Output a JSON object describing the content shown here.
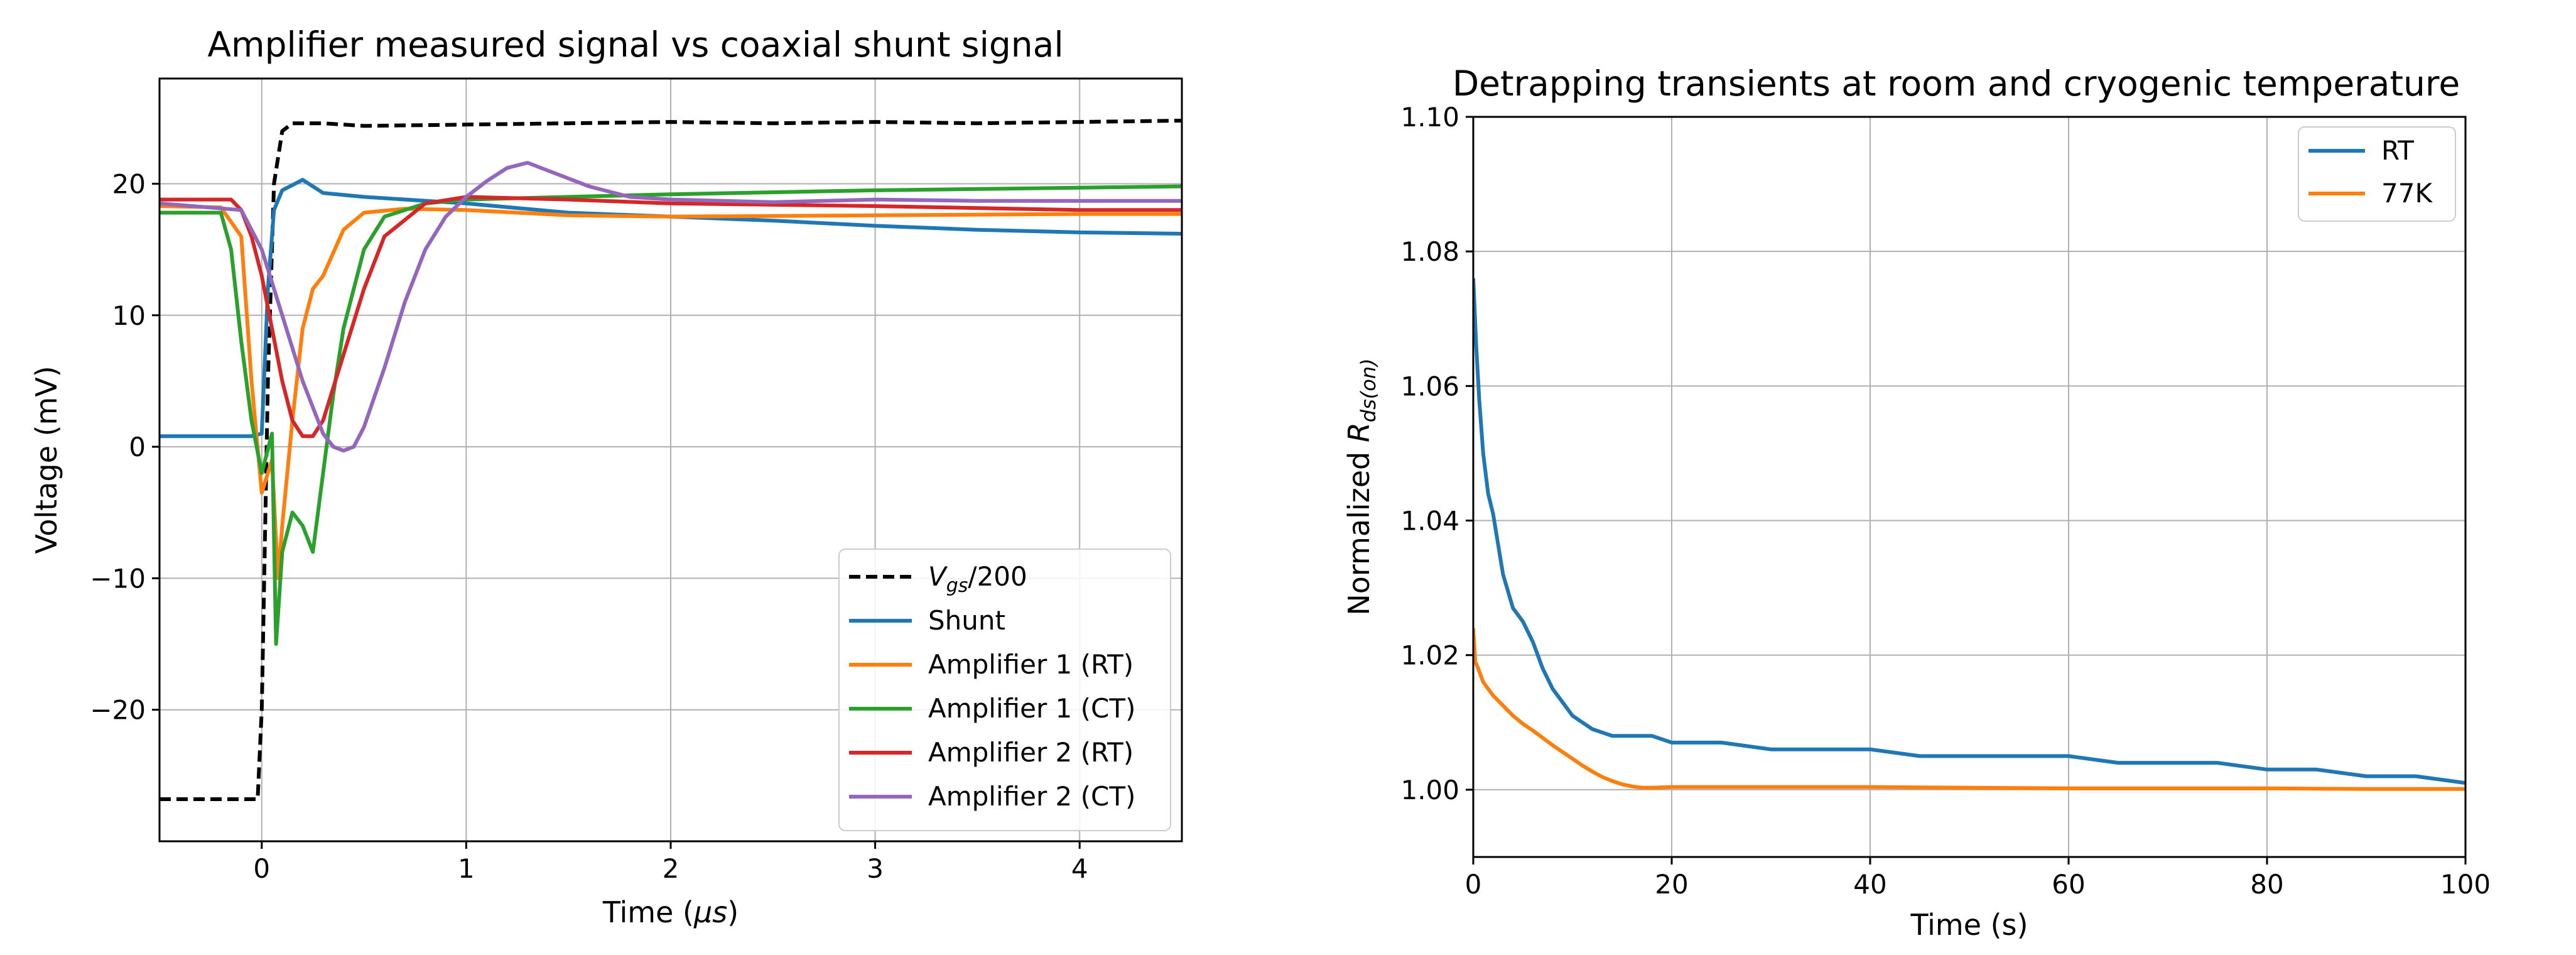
{
  "chart_data": [
    {
      "type": "line",
      "title": "Amplifier measured signal vs coaxial shunt signal",
      "xlabel": "Time (",
      "xlabel_symbol": "μs",
      "xlabel_end": ")",
      "ylabel": "Voltage (mV)",
      "xlim": [
        -0.5,
        4.5
      ],
      "ylim": [
        -30,
        28
      ],
      "xticks": [
        0,
        1,
        2,
        3,
        4
      ],
      "xtick_labels": [
        "0",
        "1",
        "2",
        "3",
        "4"
      ],
      "yticks": [
        -20,
        -10,
        0,
        10,
        20
      ],
      "ytick_labels": [
        "−20",
        "−10",
        "0",
        "10",
        "20"
      ],
      "grid": true,
      "legend_position": "lower-right",
      "series": [
        {
          "name_main": "V",
          "name_sub": "gs",
          "name_rest": "/200",
          "color": "#000000",
          "dash": true,
          "x": [
            -0.5,
            -0.02,
            0.0,
            0.03,
            0.06,
            0.1,
            0.15,
            0.3,
            0.5,
            1.0,
            1.5,
            2.0,
            2.5,
            3.0,
            3.5,
            4.0,
            4.5
          ],
          "y": [
            -26.8,
            -26.8,
            -20,
            5,
            20,
            24.0,
            24.6,
            24.6,
            24.4,
            24.5,
            24.6,
            24.7,
            24.6,
            24.7,
            24.6,
            24.7,
            24.8
          ]
        },
        {
          "name": "Shunt",
          "color": "#1f77b4",
          "x": [
            -0.5,
            -0.05,
            0.0,
            0.03,
            0.06,
            0.1,
            0.2,
            0.3,
            0.5,
            1.0,
            1.5,
            2.0,
            2.5,
            3.0,
            3.5,
            4.0,
            4.5
          ],
          "y": [
            0.8,
            0.8,
            1.0,
            12,
            18,
            19.5,
            20.3,
            19.3,
            19.0,
            18.5,
            17.8,
            17.5,
            17.2,
            16.8,
            16.5,
            16.3,
            16.2
          ]
        },
        {
          "name": "Amplifier 1 (RT)",
          "color": "#ff7f0e",
          "x": [
            -0.5,
            -0.2,
            -0.1,
            -0.05,
            0.0,
            0.05,
            0.08,
            0.1,
            0.15,
            0.2,
            0.25,
            0.3,
            0.4,
            0.5,
            0.7,
            1.0,
            1.5,
            2.0,
            3.0,
            4.0,
            4.5
          ],
          "y": [
            18.3,
            18.2,
            16,
            5,
            -3.5,
            -1,
            -10,
            -6,
            2,
            9,
            12,
            13,
            16.5,
            17.8,
            18.1,
            18.0,
            17.6,
            17.5,
            17.6,
            17.7,
            17.7
          ]
        },
        {
          "name": "Amplifier 1 (CT)",
          "color": "#2ca02c",
          "x": [
            -0.5,
            -0.2,
            -0.15,
            -0.1,
            -0.05,
            0.0,
            0.05,
            0.07,
            0.1,
            0.15,
            0.2,
            0.25,
            0.3,
            0.35,
            0.4,
            0.5,
            0.6,
            0.8,
            1.0,
            1.5,
            2.0,
            3.0,
            4.0,
            4.5
          ],
          "y": [
            17.8,
            17.8,
            15,
            8,
            2,
            -2,
            1,
            -15,
            -8,
            -5,
            -6,
            -8,
            -2,
            4,
            9,
            15,
            17.5,
            18.5,
            18.8,
            19.0,
            19.2,
            19.5,
            19.7,
            19.8
          ]
        },
        {
          "name": "Amplifier 2 (RT)",
          "color": "#d62728",
          "x": [
            -0.5,
            -0.15,
            -0.1,
            -0.05,
            0.0,
            0.05,
            0.1,
            0.15,
            0.2,
            0.25,
            0.3,
            0.4,
            0.5,
            0.6,
            0.8,
            1.0,
            1.5,
            2.0,
            3.0,
            4.0,
            4.5
          ],
          "y": [
            18.8,
            18.8,
            18.0,
            16,
            13,
            9,
            5,
            2,
            0.8,
            0.8,
            2,
            7,
            12,
            16,
            18.5,
            19.0,
            18.8,
            18.5,
            18.3,
            18.0,
            18.0
          ]
        },
        {
          "name": "Amplifier 2 (CT)",
          "color": "#9467bd",
          "x": [
            -0.5,
            -0.1,
            0.0,
            0.1,
            0.2,
            0.3,
            0.35,
            0.4,
            0.45,
            0.5,
            0.6,
            0.7,
            0.8,
            0.9,
            1.0,
            1.1,
            1.2,
            1.3,
            1.4,
            1.6,
            1.8,
            2.0,
            2.5,
            3.0,
            3.5,
            4.0,
            4.5
          ],
          "y": [
            18.5,
            18.0,
            15,
            10,
            5,
            1,
            0,
            -0.3,
            0,
            1.5,
            6,
            11,
            15,
            17.5,
            19,
            20.2,
            21.2,
            21.6,
            21.0,
            19.8,
            19.0,
            18.8,
            18.6,
            18.8,
            18.7,
            18.7,
            18.7
          ]
        }
      ]
    },
    {
      "type": "line",
      "title": "Detrapping transients at room and cryogenic temperature",
      "xlabel": "Time (s)",
      "ylabel_prefix": "Normalized ",
      "ylabel_main": "R",
      "ylabel_sub": "ds(on)",
      "xlim": [
        0,
        100
      ],
      "ylim": [
        0.99,
        1.1
      ],
      "xticks": [
        0,
        20,
        40,
        60,
        80,
        100
      ],
      "xtick_labels": [
        "0",
        "20",
        "40",
        "60",
        "80",
        "100"
      ],
      "yticks": [
        1.0,
        1.02,
        1.04,
        1.06,
        1.08,
        1.1
      ],
      "ytick_labels": [
        "1.00",
        "1.02",
        "1.04",
        "1.06",
        "1.08",
        "1.10"
      ],
      "grid": true,
      "legend_position": "upper-right",
      "series": [
        {
          "name": "RT",
          "color": "#1f77b4",
          "x": [
            0,
            0.3,
            0.6,
            1,
            1.5,
            2,
            3,
            4,
            5,
            6,
            7,
            8,
            9,
            10,
            11,
            12,
            14,
            16,
            18,
            20,
            25,
            30,
            35,
            40,
            45,
            50,
            55,
            60,
            65,
            70,
            75,
            80,
            85,
            90,
            95,
            100
          ],
          "y": [
            1.076,
            1.066,
            1.058,
            1.05,
            1.044,
            1.041,
            1.032,
            1.027,
            1.025,
            1.022,
            1.018,
            1.015,
            1.013,
            1.011,
            1.01,
            1.009,
            1.008,
            1.008,
            1.008,
            1.007,
            1.007,
            1.006,
            1.006,
            1.006,
            1.005,
            1.005,
            1.005,
            1.005,
            1.004,
            1.004,
            1.004,
            1.003,
            1.003,
            1.002,
            1.002,
            1.001
          ]
        },
        {
          "name": "77K",
          "color": "#ff7f0e",
          "x": [
            0,
            0.2,
            0.5,
            1,
            2,
            3,
            4,
            5,
            6,
            7,
            8,
            9,
            10,
            11,
            12,
            13,
            14,
            15,
            16,
            17,
            18,
            20,
            30,
            40,
            50,
            60,
            70,
            80,
            90,
            100
          ],
          "y": [
            1.024,
            1.019,
            1.018,
            1.016,
            1.014,
            1.0125,
            1.011,
            1.0098,
            1.0088,
            1.0077,
            1.0066,
            1.0056,
            1.0046,
            1.0036,
            1.0027,
            1.0019,
            1.0013,
            1.0008,
            1.0005,
            1.0003,
            1.0003,
            1.0004,
            1.0004,
            1.0004,
            1.0003,
            1.0002,
            1.0002,
            1.0002,
            1.0001,
            1.0001
          ]
        }
      ]
    }
  ]
}
